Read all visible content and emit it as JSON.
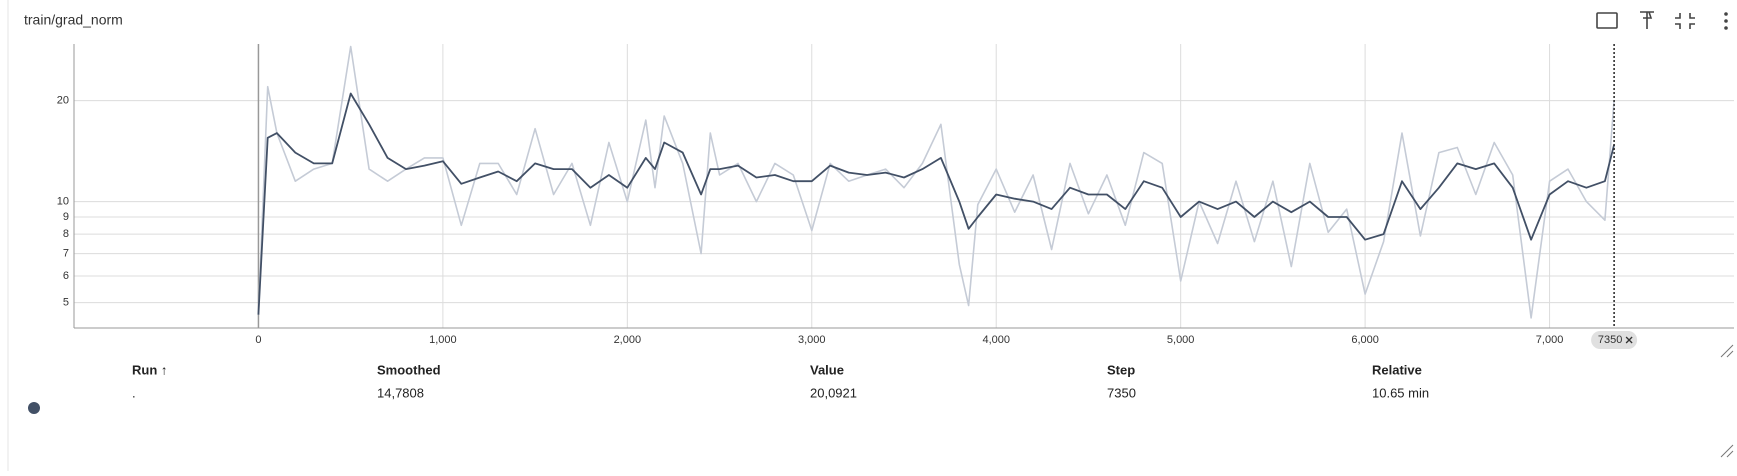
{
  "chart_data": {
    "type": "line",
    "title": "train/grad_norm",
    "log_y": true,
    "grid": true,
    "x": [
      0,
      50,
      100,
      200,
      300,
      400,
      500,
      600,
      700,
      800,
      900,
      1000,
      1100,
      1200,
      1300,
      1400,
      1500,
      1600,
      1700,
      1800,
      1900,
      2000,
      2100,
      2150,
      2200,
      2300,
      2400,
      2450,
      2500,
      2600,
      2700,
      2800,
      2900,
      3000,
      3100,
      3200,
      3300,
      3400,
      3500,
      3600,
      3700,
      3800,
      3850,
      3900,
      4000,
      4100,
      4200,
      4300,
      4400,
      4500,
      4600,
      4700,
      4800,
      4900,
      5000,
      5100,
      5200,
      5300,
      5400,
      5500,
      5600,
      5700,
      5800,
      5900,
      6000,
      6100,
      6200,
      6300,
      6400,
      6500,
      6600,
      6700,
      6800,
      6900,
      7000,
      7100,
      7200,
      7300,
      7350
    ],
    "series": [
      {
        "color": "#c5cbd6",
        "values": [
          4.6,
          22,
          16,
          11.5,
          12.5,
          13,
          29,
          12.5,
          11.5,
          12.5,
          13.5,
          13.5,
          8.5,
          13,
          13,
          10.5,
          16.5,
          10.5,
          13,
          8.5,
          15,
          10,
          17.5,
          11,
          18,
          13,
          7,
          16,
          12,
          13,
          10,
          13,
          12,
          8.2,
          13,
          11.5,
          12,
          12.5,
          11,
          13,
          17,
          6.5,
          4.9,
          9.8,
          12.5,
          9.3,
          12,
          7.2,
          13,
          9.2,
          12,
          8.5,
          14,
          13,
          5.8,
          10,
          7.5,
          11.5,
          7.6,
          11.5,
          6.4,
          13,
          8.1,
          9.5,
          5.3,
          7.6,
          16,
          7.9,
          14,
          14.5,
          10.5,
          15,
          12,
          4.5,
          11.5,
          12.5,
          10,
          8.8,
          20.0921
        ]
      },
      {
        "color": "#425066",
        "values": [
          4.6,
          15.5,
          16,
          14,
          13,
          13,
          21,
          17,
          13.5,
          12.5,
          12.8,
          13.2,
          11.3,
          11.8,
          12.3,
          11.5,
          13,
          12.5,
          12.5,
          11,
          12,
          11,
          13.5,
          12.5,
          15,
          14,
          10.5,
          12.5,
          12.5,
          12.8,
          11.8,
          12,
          11.5,
          11.5,
          12.8,
          12.2,
          12,
          12.2,
          11.8,
          12.5,
          13.5,
          10,
          8.3,
          9,
          10.5,
          10.2,
          10,
          9.5,
          11,
          10.5,
          10.5,
          9.5,
          11.5,
          11,
          9,
          10,
          9.5,
          10,
          9,
          10,
          9.3,
          10,
          9,
          9,
          7.7,
          8,
          11.5,
          9.5,
          11,
          13,
          12.5,
          13,
          11,
          7.7,
          10.5,
          11.5,
          11,
          11.5,
          14.7808
        ]
      }
    ],
    "xlim": [
      -1000,
      8000
    ],
    "ylim": [
      4.2,
      29.5
    ],
    "xticks": [
      0,
      {
        "value": 1000,
        "label": "1,000"
      },
      {
        "value": 2000,
        "label": "2,000"
      },
      {
        "value": 3000,
        "label": "3,000"
      },
      {
        "value": 4000,
        "label": "4,000"
      },
      {
        "value": 5000,
        "label": "5,000"
      },
      {
        "value": 6000,
        "label": "6,000"
      },
      {
        "value": 7000,
        "label": "7,000"
      }
    ],
    "yticks": [
      5,
      6,
      7,
      8,
      9,
      10,
      20
    ],
    "cursor_step": 7350,
    "tooltip": {
      "headers": [
        "Run ↑",
        "Smoothed",
        "Value",
        "Step",
        "Relative"
      ],
      "row": [
        ".",
        "14,7808",
        "20,0921",
        "7350",
        "10.65 min"
      ]
    }
  }
}
